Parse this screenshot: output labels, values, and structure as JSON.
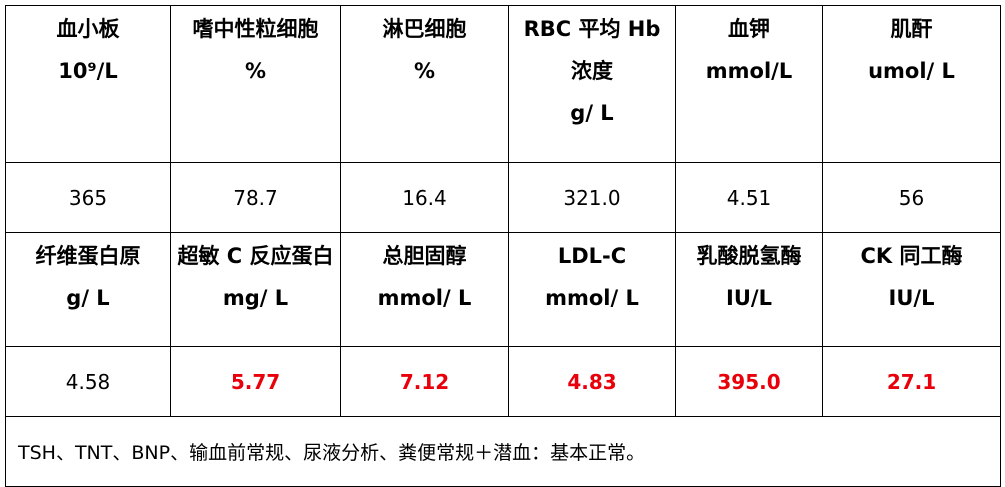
{
  "table": {
    "sections": [
      {
        "headers": [
          [
            "血小板",
            "10⁹/L"
          ],
          [
            "嗜中性粒细胞",
            "%"
          ],
          [
            "淋巴细胞",
            "%"
          ],
          [
            "RBC 平均 Hb",
            "浓度",
            "g/ L"
          ],
          [
            "血钾",
            "mmol/L"
          ],
          [
            "肌酐",
            "umol/ L"
          ]
        ],
        "values": [
          {
            "text": "365",
            "color": "#000000"
          },
          {
            "text": "78.7",
            "color": "#000000"
          },
          {
            "text": "16.4",
            "color": "#000000"
          },
          {
            "text": "321.0",
            "color": "#000000"
          },
          {
            "text": "4.51",
            "color": "#000000"
          },
          {
            "text": "56",
            "color": "#000000"
          }
        ]
      },
      {
        "headers": [
          [
            "纤维蛋白原",
            "g/ L"
          ],
          [
            "超敏 C 反应蛋白",
            "mg/ L"
          ],
          [
            "总胆固醇",
            "mmol/ L"
          ],
          [
            "LDL-C",
            "mmol/ L"
          ],
          [
            "乳酸脱氢酶",
            "IU/L"
          ],
          [
            "CK 同工酶",
            "IU/L"
          ]
        ],
        "values": [
          {
            "text": "4.58",
            "color": "#000000"
          },
          {
            "text": "5.77",
            "color": "#e8000b"
          },
          {
            "text": "7.12",
            "color": "#e8000b"
          },
          {
            "text": "4.83",
            "color": "#e8000b"
          },
          {
            "text": "395.0",
            "color": "#e8000b"
          },
          {
            "text": "27.1",
            "color": "#e8000b"
          }
        ]
      }
    ],
    "note": "TSH、TNT、BNP、输血前常规、尿液分析、粪便常规＋潜血：基本正常。"
  }
}
